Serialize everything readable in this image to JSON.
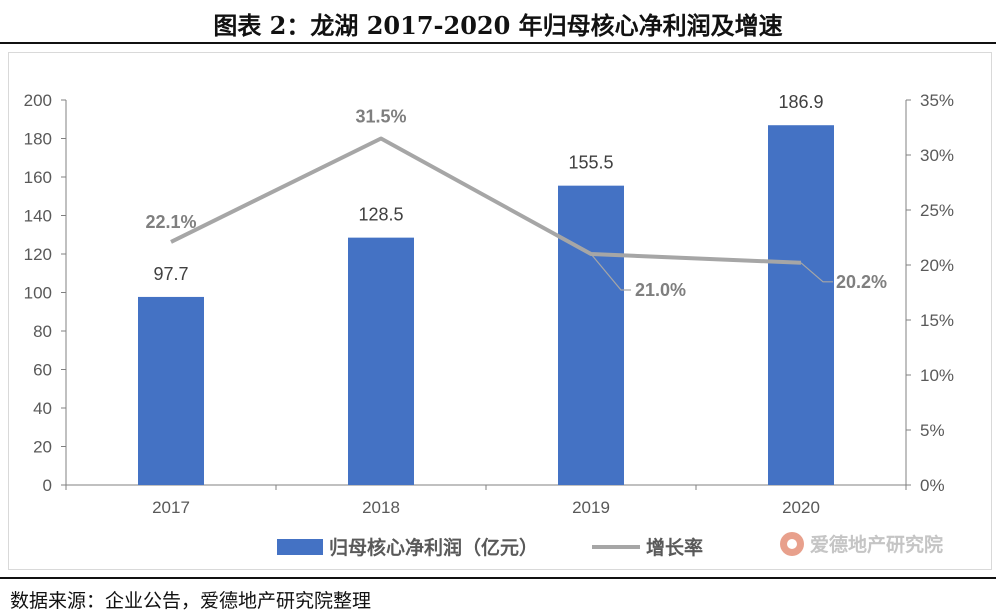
{
  "title": "图表 2：龙湖 2017-2020 年归母核心净利润及增速",
  "source": "数据来源：企业公告，爱德地产研究院整理",
  "watermark": "爱德地产研究院",
  "colors": {
    "bar": "#4472c4",
    "line": "#a6a6a6",
    "axis_text": "#595959",
    "line_label": "#7f7f7f"
  },
  "chart_data": {
    "type": "bar+line",
    "categories": [
      "2017",
      "2018",
      "2019",
      "2020"
    ],
    "series": [
      {
        "name": "归母核心净利润（亿元）",
        "type": "bar",
        "axis": "left",
        "values": [
          97.7,
          128.5,
          155.5,
          186.9
        ],
        "labels": [
          "97.7",
          "128.5",
          "155.5",
          "186.9"
        ]
      },
      {
        "name": "增长率",
        "type": "line",
        "axis": "right",
        "values": [
          22.1,
          31.5,
          21.0,
          20.2
        ],
        "labels": [
          "22.1%",
          "31.5%",
          "21.0%",
          "20.2%"
        ]
      }
    ],
    "y_left": {
      "lim": [
        0,
        200
      ],
      "ticks": [
        "0",
        "20",
        "40",
        "60",
        "80",
        "100",
        "120",
        "140",
        "160",
        "180",
        "200"
      ]
    },
    "y_right": {
      "lim": [
        0,
        35
      ],
      "ticks": [
        "0%",
        "5%",
        "10%",
        "15%",
        "20%",
        "25%",
        "30%",
        "35%"
      ]
    },
    "legend_position": "bottom-center",
    "grid": false
  }
}
